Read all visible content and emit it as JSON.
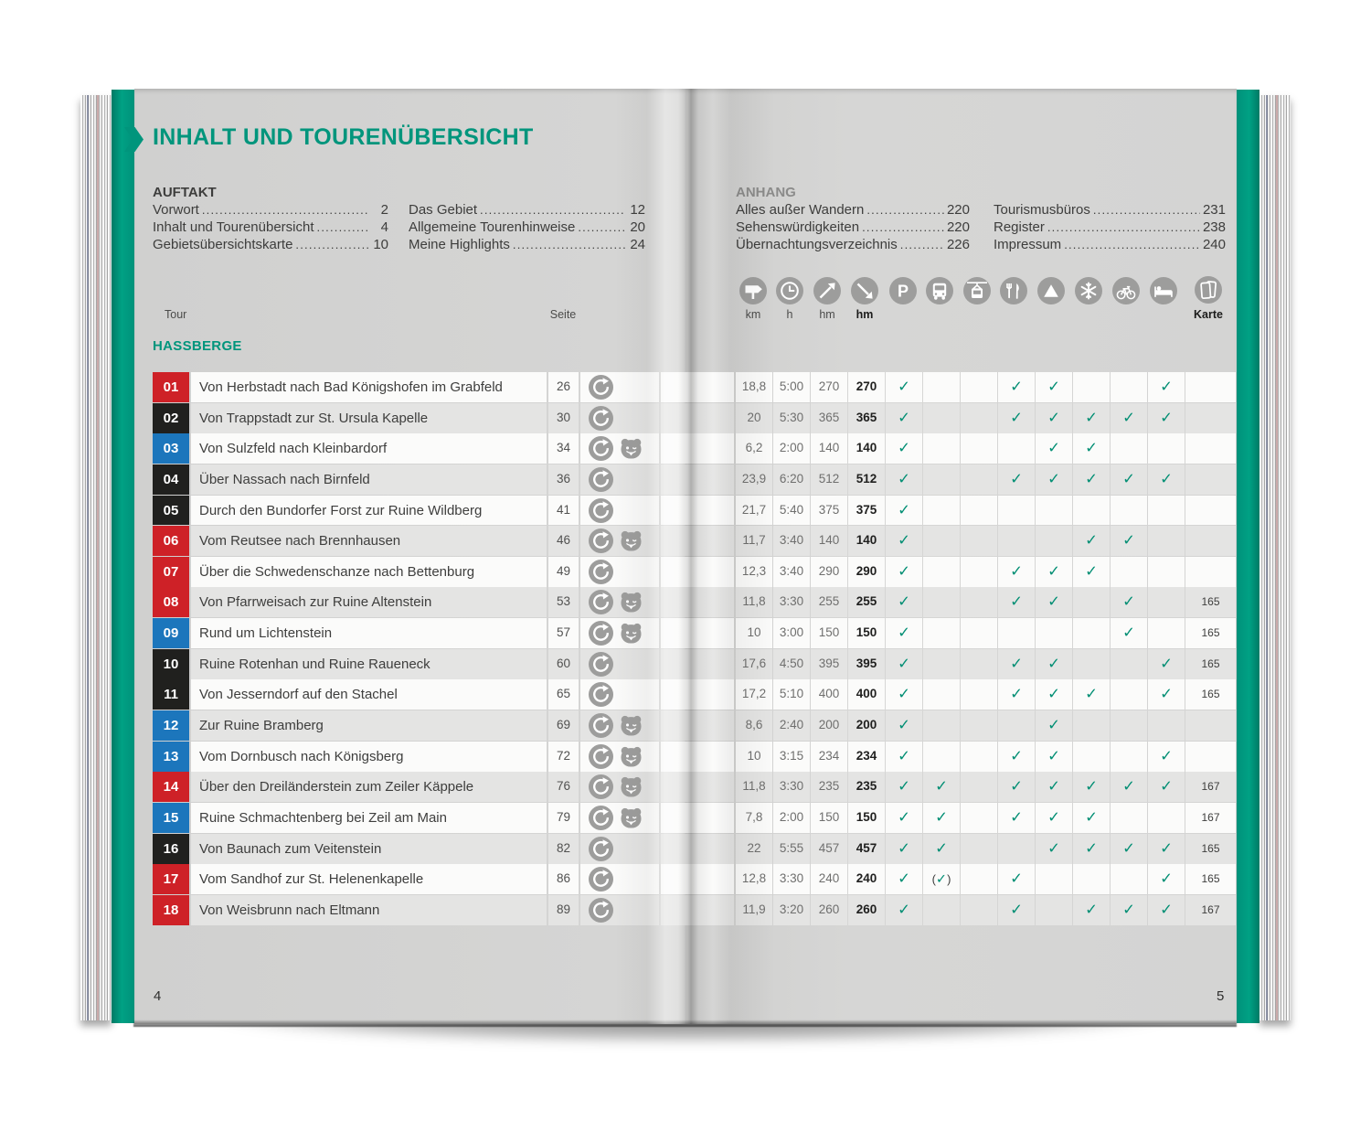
{
  "book": {
    "title": "INHALT UND TOURENÜBERSICHT",
    "left_page_number": "4",
    "right_page_number": "5"
  },
  "toc": {
    "auftakt": {
      "heading": "AUFTAKT",
      "col1": [
        {
          "label": "Vorwort",
          "page": "2"
        },
        {
          "label": "Inhalt und Tourenübersicht",
          "page": "4"
        },
        {
          "label": "Gebietsübersichtskarte",
          "page": "10"
        }
      ],
      "col2": [
        {
          "label": "Das Gebiet",
          "page": "12"
        },
        {
          "label": "Allgemeine Tourenhinweise",
          "page": "20"
        },
        {
          "label": "Meine Highlights",
          "page": "24"
        }
      ]
    },
    "anhang": {
      "heading": "ANHANG",
      "col1": [
        {
          "label": "Alles außer Wandern",
          "page": "220"
        },
        {
          "label": "Sehenswürdigkeiten",
          "page": "220"
        },
        {
          "label": "Übernachtungsverzeichnis",
          "page": "226"
        }
      ],
      "col2": [
        {
          "label": "Tourismusbüros",
          "page": "231"
        },
        {
          "label": "Register",
          "page": "238"
        },
        {
          "label": "Impressum",
          "page": "240"
        }
      ]
    }
  },
  "table": {
    "tour_col_header": "Tour",
    "seite_col_header": "Seite",
    "karte_col_header": "Karte",
    "metric_headers": [
      "km",
      "h",
      "hm",
      "hm"
    ],
    "region_heading": "HASSBERGE",
    "header_icons": [
      "signpost",
      "clock",
      "ascent",
      "descent",
      "parking",
      "bus",
      "cablecar",
      "restaurant",
      "summit",
      "snowflake",
      "bike",
      "bed",
      "karte"
    ],
    "check_columns": [
      "parking",
      "bus",
      "cablecar",
      "restaurant",
      "summit",
      "snowflake",
      "bike",
      "bed"
    ],
    "tours": [
      {
        "nr": "01",
        "difficulty": "red",
        "name": "Von Herbstadt nach Bad Königshofen im Grabfeld",
        "seite": "26",
        "icons": [
          "loop"
        ],
        "km": "18,8",
        "h": "5:00",
        "hm_up": "270",
        "hm_down": "270",
        "checks": [
          "parking",
          "restaurant",
          "summit",
          "bed"
        ],
        "paren_checks": [],
        "karte": ""
      },
      {
        "nr": "02",
        "difficulty": "black",
        "name": "Von Trappstadt zur St. Ursula Kapelle",
        "seite": "30",
        "icons": [
          "loop"
        ],
        "km": "20",
        "h": "5:30",
        "hm_up": "365",
        "hm_down": "365",
        "checks": [
          "parking",
          "restaurant",
          "summit",
          "snowflake",
          "bike",
          "bed"
        ],
        "paren_checks": [],
        "karte": ""
      },
      {
        "nr": "03",
        "difficulty": "blue",
        "name": "Von Sulzfeld nach Kleinbardorf",
        "seite": "34",
        "icons": [
          "loop",
          "family"
        ],
        "km": "6,2",
        "h": "2:00",
        "hm_up": "140",
        "hm_down": "140",
        "checks": [
          "parking",
          "summit",
          "snowflake"
        ],
        "paren_checks": [],
        "karte": ""
      },
      {
        "nr": "04",
        "difficulty": "black",
        "name": "Über Nassach nach Birnfeld",
        "seite": "36",
        "icons": [
          "loop"
        ],
        "km": "23,9",
        "h": "6:20",
        "hm_up": "512",
        "hm_down": "512",
        "checks": [
          "parking",
          "restaurant",
          "summit",
          "snowflake",
          "bike",
          "bed"
        ],
        "paren_checks": [],
        "karte": ""
      },
      {
        "nr": "05",
        "difficulty": "black",
        "name": "Durch den Bundorfer Forst zur Ruine Wildberg",
        "seite": "41",
        "icons": [
          "loop"
        ],
        "km": "21,7",
        "h": "5:40",
        "hm_up": "375",
        "hm_down": "375",
        "checks": [
          "parking"
        ],
        "paren_checks": [],
        "karte": ""
      },
      {
        "nr": "06",
        "difficulty": "red",
        "name": "Vom Reutsee nach Brennhausen",
        "seite": "46",
        "icons": [
          "loop",
          "family"
        ],
        "km": "11,7",
        "h": "3:40",
        "hm_up": "140",
        "hm_down": "140",
        "checks": [
          "parking",
          "snowflake",
          "bike"
        ],
        "paren_checks": [],
        "karte": ""
      },
      {
        "nr": "07",
        "difficulty": "red",
        "name": "Über die Schwedenschanze nach Bettenburg",
        "seite": "49",
        "icons": [
          "loop"
        ],
        "km": "12,3",
        "h": "3:40",
        "hm_up": "290",
        "hm_down": "290",
        "checks": [
          "parking",
          "restaurant",
          "summit",
          "snowflake"
        ],
        "paren_checks": [],
        "karte": ""
      },
      {
        "nr": "08",
        "difficulty": "red",
        "name": "Von Pfarrweisach zur Ruine Altenstein",
        "seite": "53",
        "icons": [
          "loop",
          "family"
        ],
        "km": "11,8",
        "h": "3:30",
        "hm_up": "255",
        "hm_down": "255",
        "checks": [
          "parking",
          "restaurant",
          "summit",
          "bike"
        ],
        "paren_checks": [],
        "karte": "165"
      },
      {
        "nr": "09",
        "difficulty": "blue",
        "name": "Rund um Lichtenstein",
        "seite": "57",
        "icons": [
          "loop",
          "family"
        ],
        "km": "10",
        "h": "3:00",
        "hm_up": "150",
        "hm_down": "150",
        "checks": [
          "parking",
          "bike"
        ],
        "paren_checks": [],
        "karte": "165"
      },
      {
        "nr": "10",
        "difficulty": "black",
        "name": "Ruine Rotenhan und Ruine Raueneck",
        "seite": "60",
        "icons": [
          "loop"
        ],
        "km": "17,6",
        "h": "4:50",
        "hm_up": "395",
        "hm_down": "395",
        "checks": [
          "parking",
          "restaurant",
          "summit",
          "bed"
        ],
        "paren_checks": [],
        "karte": "165"
      },
      {
        "nr": "11",
        "difficulty": "black",
        "name": "Von Jesserndorf auf den Stachel",
        "seite": "65",
        "icons": [
          "loop"
        ],
        "km": "17,2",
        "h": "5:10",
        "hm_up": "400",
        "hm_down": "400",
        "checks": [
          "parking",
          "restaurant",
          "summit",
          "snowflake",
          "bed"
        ],
        "paren_checks": [],
        "karte": "165"
      },
      {
        "nr": "12",
        "difficulty": "blue",
        "name": "Zur Ruine Bramberg",
        "seite": "69",
        "icons": [
          "loop",
          "family"
        ],
        "km": "8,6",
        "h": "2:40",
        "hm_up": "200",
        "hm_down": "200",
        "checks": [
          "parking",
          "summit"
        ],
        "paren_checks": [],
        "karte": ""
      },
      {
        "nr": "13",
        "difficulty": "blue",
        "name": "Vom Dornbusch nach Königsberg",
        "seite": "72",
        "icons": [
          "loop",
          "family"
        ],
        "km": "10",
        "h": "3:15",
        "hm_up": "234",
        "hm_down": "234",
        "checks": [
          "parking",
          "restaurant",
          "summit",
          "bed"
        ],
        "paren_checks": [],
        "karte": ""
      },
      {
        "nr": "14",
        "difficulty": "red",
        "name": "Über den Dreiländerstein zum Zeiler Käppele",
        "seite": "76",
        "icons": [
          "loop",
          "family"
        ],
        "km": "11,8",
        "h": "3:30",
        "hm_up": "235",
        "hm_down": "235",
        "checks": [
          "parking",
          "bus",
          "restaurant",
          "summit",
          "snowflake",
          "bike",
          "bed"
        ],
        "paren_checks": [],
        "karte": "167"
      },
      {
        "nr": "15",
        "difficulty": "blue",
        "name": "Ruine Schmachtenberg bei Zeil am Main",
        "seite": "79",
        "icons": [
          "loop",
          "family"
        ],
        "km": "7,8",
        "h": "2:00",
        "hm_up": "150",
        "hm_down": "150",
        "checks": [
          "parking",
          "bus",
          "restaurant",
          "summit",
          "snowflake"
        ],
        "paren_checks": [],
        "karte": "167"
      },
      {
        "nr": "16",
        "difficulty": "black",
        "name": "Von Baunach zum Veitenstein",
        "seite": "82",
        "icons": [
          "loop"
        ],
        "km": "22",
        "h": "5:55",
        "hm_up": "457",
        "hm_down": "457",
        "checks": [
          "parking",
          "bus",
          "summit",
          "snowflake",
          "bike",
          "bed"
        ],
        "paren_checks": [],
        "karte": "165"
      },
      {
        "nr": "17",
        "difficulty": "red",
        "name": "Vom Sandhof zur St. Helenenkapelle",
        "seite": "86",
        "icons": [
          "loop"
        ],
        "km": "12,8",
        "h": "3:30",
        "hm_up": "240",
        "hm_down": "240",
        "checks": [
          "parking",
          "restaurant",
          "bed"
        ],
        "paren_checks": [
          "bus"
        ],
        "karte": "165"
      },
      {
        "nr": "18",
        "difficulty": "red",
        "name": "Von Weisbrunn nach Eltmann",
        "seite": "89",
        "icons": [
          "loop"
        ],
        "km": "11,9",
        "h": "3:20",
        "hm_up": "260",
        "hm_down": "260",
        "checks": [
          "parking",
          "restaurant",
          "snowflake",
          "bike",
          "bed"
        ],
        "paren_checks": [],
        "karte": "167"
      }
    ]
  },
  "colors": {
    "accent_green": "#00957c",
    "difficulty_red": "#ce2127",
    "difficulty_blue": "#1c76bc",
    "difficulty_black": "#20201e",
    "icon_gray": "#9d9d9c",
    "check_green": "#008e73"
  }
}
